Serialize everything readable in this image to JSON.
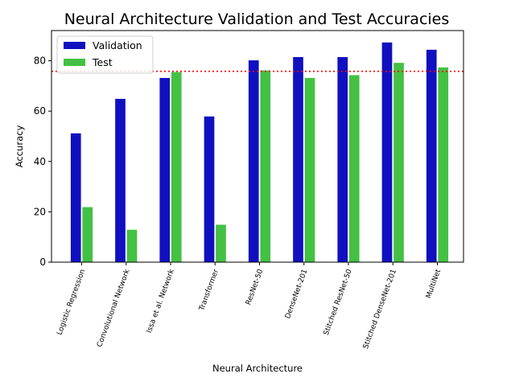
{
  "chart_data": {
    "type": "bar",
    "title": "Neural Architecture Validation and Test Accuracies",
    "xlabel": "Neural Architecture",
    "ylabel": "Accuracy",
    "ylim": [
      0,
      92
    ],
    "yticks": [
      0,
      20,
      40,
      60,
      80
    ],
    "categories": [
      "Logistic Regression",
      "Convolutional Network",
      "Issa et al. Network",
      "Transformer",
      "ResNet-50",
      "DenseNet-201",
      "Stitched ResNet-50",
      "Stitched DenseNet-201",
      "MultiNet"
    ],
    "series": [
      {
        "name": "Validation",
        "color": "#1010c0",
        "values": [
          51.3,
          65.0,
          73.3,
          58.0,
          80.3,
          81.6,
          81.6,
          87.4,
          84.5
        ]
      },
      {
        "name": "Test",
        "color": "#44c044",
        "values": [
          22.0,
          13.0,
          75.6,
          15.0,
          76.3,
          73.3,
          74.4,
          79.3,
          77.5
        ]
      }
    ],
    "reference_line": {
      "value": 75.8,
      "color": "#ff0000",
      "style": "dotted"
    },
    "legend_position": "top-left",
    "grid": false
  }
}
